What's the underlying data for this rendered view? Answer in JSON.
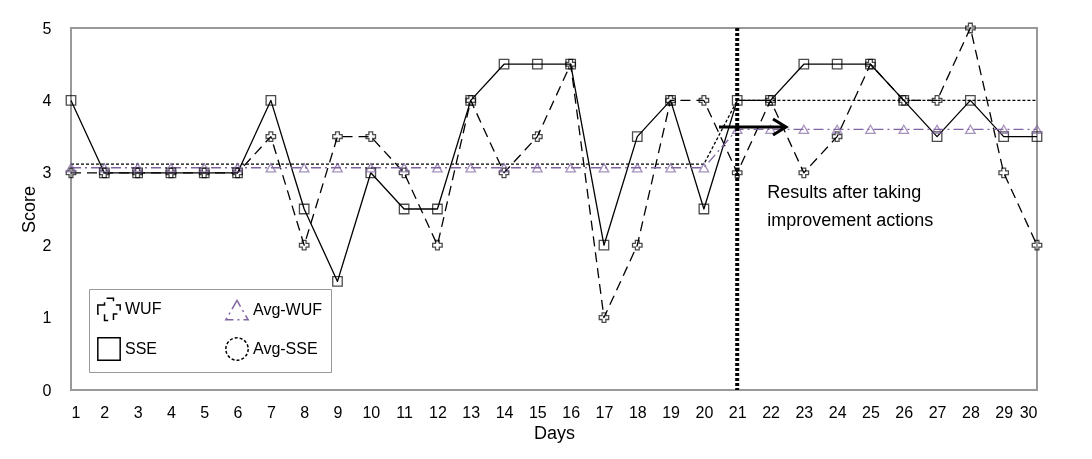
{
  "chart_data": {
    "type": "line",
    "xlabel": "Days",
    "ylabel": "Score",
    "x": [
      1,
      2,
      3,
      4,
      5,
      6,
      7,
      8,
      9,
      10,
      11,
      12,
      13,
      14,
      15,
      16,
      17,
      18,
      19,
      20,
      21,
      22,
      23,
      24,
      25,
      26,
      27,
      28,
      29,
      30
    ],
    "series": [
      {
        "name": "WUF",
        "color": "#000000",
        "marker": "cross",
        "line_style": "dashed",
        "values": [
          3,
          3,
          3,
          3,
          3,
          3,
          3.5,
          2,
          3.5,
          3.5,
          3,
          2,
          4,
          3,
          3.5,
          4.5,
          1,
          2,
          4,
          4,
          3,
          4,
          3,
          3.5,
          4.5,
          4,
          4,
          5,
          3,
          2
        ]
      },
      {
        "name": "SSE",
        "color": "#000000",
        "marker": "square",
        "line_style": "solid",
        "values": [
          4,
          3,
          3,
          3,
          3,
          3,
          4,
          2.5,
          1.5,
          3,
          2.5,
          2.5,
          4,
          4.5,
          4.5,
          4.5,
          2,
          3.5,
          4,
          2.5,
          4,
          4,
          4.5,
          4.5,
          4.5,
          4,
          3.5,
          4,
          3.5,
          3.5
        ]
      },
      {
        "name": "Avg-WUF",
        "color": "#8064a2",
        "marker": "triangle",
        "line_style": "dashdot",
        "values": [
          3.07,
          3.07,
          3.07,
          3.07,
          3.07,
          3.07,
          3.07,
          3.07,
          3.07,
          3.07,
          3.07,
          3.07,
          3.07,
          3.07,
          3.07,
          3.07,
          3.07,
          3.07,
          3.07,
          3.07,
          3.6,
          3.6,
          3.6,
          3.6,
          3.6,
          3.6,
          3.6,
          3.6,
          3.6,
          3.6
        ]
      },
      {
        "name": "Avg-SSE",
        "color": "#000000",
        "marker": "none",
        "line_style": "dotted",
        "values": [
          3.12,
          3.12,
          3.12,
          3.12,
          3.12,
          3.12,
          3.12,
          3.12,
          3.12,
          3.12,
          3.12,
          3.12,
          3.12,
          3.12,
          3.12,
          3.12,
          3.12,
          3.12,
          3.12,
          3.12,
          4,
          4,
          4,
          4,
          4,
          4,
          4,
          4,
          4,
          4
        ]
      }
    ],
    "xlim": [
      1,
      30
    ],
    "xticks": [
      1,
      2,
      3,
      4,
      5,
      6,
      7,
      8,
      9,
      10,
      11,
      12,
      13,
      14,
      15,
      16,
      17,
      18,
      19,
      20,
      21,
      22,
      23,
      24,
      25,
      26,
      27,
      28,
      29,
      30
    ],
    "ylim": [
      0,
      5
    ],
    "yticks": [
      0,
      1,
      2,
      3,
      4,
      5
    ],
    "ref_lines": [
      {
        "axis": "x",
        "value": 21,
        "label": null,
        "color": "#000000",
        "line_style": "dotted"
      }
    ],
    "annotations": [
      "Results after taking improvement actions"
    ],
    "grid": false,
    "legend": "bottom left"
  }
}
